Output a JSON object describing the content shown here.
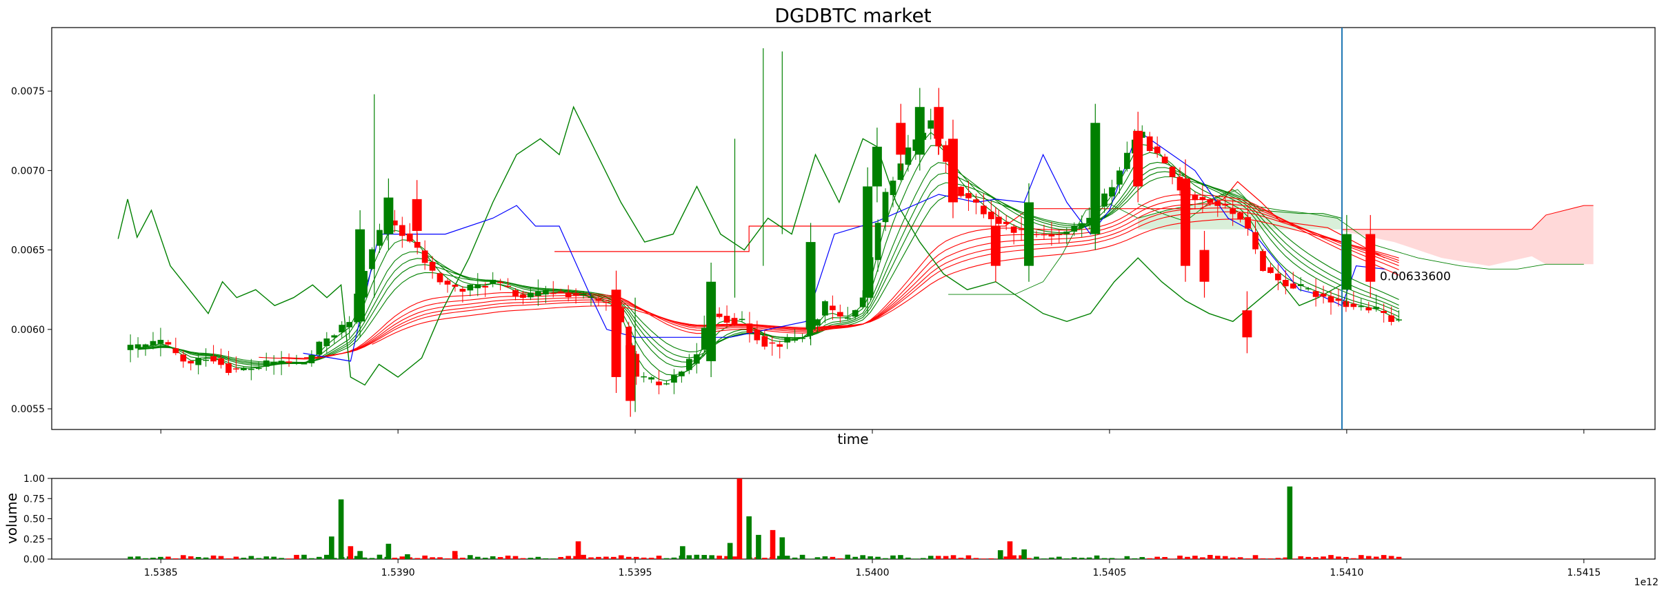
{
  "chart_data": {
    "type": "candlestick",
    "title": "DGDBTC market",
    "xlabel": "time",
    "x_offset_label": "1e12",
    "x_scale": 1000000000000,
    "xlim": [
      1538270000000,
      1541650000000
    ],
    "x_ticks": [
      1538500000000,
      1539000000000,
      1539500000000,
      1540000000000,
      1540500000000,
      1541000000000,
      1541500000000
    ],
    "x_tick_labels": [
      "1.5385",
      "1.5390",
      "1.5395",
      "1.5400",
      "1.5405",
      "1.5410",
      "1.5415"
    ],
    "ylim": [
      0.00537,
      0.0079
    ],
    "y_ticks": [
      0.0055,
      0.006,
      0.0065,
      0.007,
      0.0075
    ],
    "y_tick_labels": [
      "0.0055",
      "0.0060",
      "0.0065",
      "0.0070",
      "0.0075"
    ],
    "last_price_label": "0.00633600",
    "last_price": 0.006336,
    "current_time": 1540990000000,
    "colors": {
      "up": "#008000",
      "down": "#ff0000",
      "blue_line": "#0000ff",
      "current_time_line": "#1f77b4",
      "cloud_up": "#d9efd9",
      "cloud_down": "#ffd9d9"
    },
    "candle_anchors": [
      [
        1538420000000,
        0.00587
      ],
      [
        1538500000000,
        0.00592
      ],
      [
        1538560000000,
        0.00577
      ],
      [
        1538600000000,
        0.00584
      ],
      [
        1538650000000,
        0.00574
      ],
      [
        1538700000000,
        0.00576
      ],
      [
        1538750000000,
        0.0058
      ],
      [
        1538800000000,
        0.00578
      ],
      [
        1538850000000,
        0.00595
      ],
      [
        1538900000000,
        0.00605
      ],
      [
        1538940000000,
        0.0065
      ],
      [
        1538980000000,
        0.0067
      ],
      [
        1539040000000,
        0.0065
      ],
      [
        1539080000000,
        0.00632
      ],
      [
        1539130000000,
        0.00624
      ],
      [
        1539200000000,
        0.0063
      ],
      [
        1539260000000,
        0.0062
      ],
      [
        1539330000000,
        0.00624
      ],
      [
        1539400000000,
        0.0062
      ],
      [
        1539460000000,
        0.00613
      ],
      [
        1539500000000,
        0.0057
      ],
      [
        1539560000000,
        0.00565
      ],
      [
        1539620000000,
        0.0058
      ],
      [
        1539660000000,
        0.0061
      ],
      [
        1539720000000,
        0.00605
      ],
      [
        1539780000000,
        0.0059
      ],
      [
        1539850000000,
        0.00595
      ],
      [
        1539900000000,
        0.00615
      ],
      [
        1539940000000,
        0.00605
      ],
      [
        1539980000000,
        0.0062
      ],
      [
        1540020000000,
        0.0068
      ],
      [
        1540070000000,
        0.0071
      ],
      [
        1540120000000,
        0.00732
      ],
      [
        1540170000000,
        0.0069
      ],
      [
        1540230000000,
        0.00675
      ],
      [
        1540280000000,
        0.00665
      ],
      [
        1540330000000,
        0.0066
      ],
      [
        1540400000000,
        0.0066
      ],
      [
        1540450000000,
        0.00668
      ],
      [
        1540500000000,
        0.00688
      ],
      [
        1540560000000,
        0.00725
      ],
      [
        1540610000000,
        0.00705
      ],
      [
        1540660000000,
        0.00685
      ],
      [
        1540720000000,
        0.0068
      ],
      [
        1540780000000,
        0.0067
      ],
      [
        1540820000000,
        0.0064
      ],
      [
        1540860000000,
        0.0063
      ],
      [
        1540910000000,
        0.00625
      ],
      [
        1540960000000,
        0.0062
      ],
      [
        1541010000000,
        0.00615
      ],
      [
        1541060000000,
        0.00612
      ],
      [
        1541100000000,
        0.00605
      ],
      [
        1541140000000,
        0.006
      ],
      [
        1541190000000,
        0.00612
      ],
      [
        1541240000000,
        0.0062
      ],
      [
        1541290000000,
        0.0064
      ],
      [
        1541330000000,
        0.0063
      ],
      [
        1541380000000,
        0.00632
      ],
      [
        1541420000000,
        0.00634
      ]
    ],
    "big_candles": [
      [
        1538920000000,
        0.00605,
        0.00663
      ],
      [
        1538980000000,
        0.0066,
        0.00683
      ],
      [
        1539040000000,
        0.00682,
        0.00662
      ],
      [
        1539460000000,
        0.00625,
        0.0057
      ],
      [
        1539490000000,
        0.0059,
        0.00555
      ],
      [
        1539660000000,
        0.0058,
        0.0063
      ],
      [
        1539870000000,
        0.006,
        0.00655
      ],
      [
        1539990000000,
        0.0062,
        0.0069
      ],
      [
        1540010000000,
        0.0069,
        0.00715
      ],
      [
        1540060000000,
        0.0073,
        0.0071
      ],
      [
        1540100000000,
        0.0071,
        0.0074
      ],
      [
        1540140000000,
        0.0074,
        0.0072
      ],
      [
        1540170000000,
        0.0072,
        0.0068
      ],
      [
        1540260000000,
        0.00665,
        0.0064
      ],
      [
        1540330000000,
        0.0064,
        0.0068
      ],
      [
        1540470000000,
        0.0066,
        0.0073
      ],
      [
        1540560000000,
        0.00725,
        0.0069
      ],
      [
        1540660000000,
        0.00695,
        0.0064
      ],
      [
        1540700000000,
        0.0065,
        0.0063
      ],
      [
        1541000000000,
        0.00625,
        0.0066
      ],
      [
        1541050000000,
        0.0066,
        0.0063
      ],
      [
        1540790000000,
        0.00612,
        0.00595
      ]
    ],
    "oscillator_line": [
      [
        1538410000000,
        0.00657
      ],
      [
        1538430000000,
        0.00682
      ],
      [
        1538450000000,
        0.00658
      ],
      [
        1538480000000,
        0.00675
      ],
      [
        1538520000000,
        0.0064
      ],
      [
        1538560000000,
        0.00625
      ],
      [
        1538600000000,
        0.0061
      ],
      [
        1538630000000,
        0.0063
      ],
      [
        1538660000000,
        0.0062
      ],
      [
        1538700000000,
        0.00625
      ],
      [
        1538740000000,
        0.00615
      ],
      [
        1538780000000,
        0.0062
      ],
      [
        1538820000000,
        0.00628
      ],
      [
        1538850000000,
        0.0062
      ],
      [
        1538880000000,
        0.00628
      ],
      [
        1538900000000,
        0.0057
      ],
      [
        1538930000000,
        0.00565
      ],
      [
        1538960000000,
        0.00578
      ],
      [
        1539000000000,
        0.0057
      ],
      [
        1539050000000,
        0.00582
      ],
      [
        1539090000000,
        0.0061
      ],
      [
        1539150000000,
        0.00645
      ],
      [
        1539200000000,
        0.0068
      ],
      [
        1539250000000,
        0.0071
      ],
      [
        1539300000000,
        0.0072
      ],
      [
        1539340000000,
        0.0071
      ],
      [
        1539370000000,
        0.0074
      ],
      [
        1539420000000,
        0.0071
      ],
      [
        1539470000000,
        0.0068
      ],
      [
        1539520000000,
        0.00655
      ],
      [
        1539580000000,
        0.0066
      ],
      [
        1539630000000,
        0.0069
      ],
      [
        1539680000000,
        0.0066
      ],
      [
        1539730000000,
        0.0065
      ],
      [
        1539780000000,
        0.0067
      ],
      [
        1539830000000,
        0.0066
      ],
      [
        1539880000000,
        0.0071
      ],
      [
        1539930000000,
        0.0068
      ],
      [
        1539980000000,
        0.0072
      ],
      [
        1540010000000,
        0.00715
      ],
      [
        1540050000000,
        0.0068
      ],
      [
        1540100000000,
        0.00655
      ],
      [
        1540150000000,
        0.00635
      ],
      [
        1540200000000,
        0.00625
      ],
      [
        1540260000000,
        0.0063
      ],
      [
        1540310000000,
        0.0062
      ],
      [
        1540360000000,
        0.0061
      ],
      [
        1540410000000,
        0.00605
      ],
      [
        1540460000000,
        0.0061
      ],
      [
        1540510000000,
        0.0063
      ],
      [
        1540560000000,
        0.00645
      ],
      [
        1540610000000,
        0.0063
      ],
      [
        1540660000000,
        0.00618
      ],
      [
        1540710000000,
        0.0061
      ],
      [
        1540760000000,
        0.00605
      ],
      [
        1540820000000,
        0.0062
      ],
      [
        1540860000000,
        0.0063
      ],
      [
        1540900000000,
        0.00615
      ],
      [
        1540940000000,
        0.0062
      ],
      [
        1541000000000,
        0.0063
      ]
    ],
    "blue_line": [
      [
        1538800000000,
        0.00585
      ],
      [
        1538900000000,
        0.0058
      ],
      [
        1538960000000,
        0.0066
      ],
      [
        1539100000000,
        0.0066
      ],
      [
        1539200000000,
        0.0067
      ],
      [
        1539250000000,
        0.00678
      ],
      [
        1539290000000,
        0.00665
      ],
      [
        1539340000000,
        0.00665
      ],
      [
        1539400000000,
        0.00625
      ],
      [
        1539440000000,
        0.006
      ],
      [
        1539500000000,
        0.00595
      ],
      [
        1539700000000,
        0.00595
      ],
      [
        1539860000000,
        0.00605
      ],
      [
        1539920000000,
        0.0066
      ],
      [
        1540010000000,
        0.00668
      ],
      [
        1540140000000,
        0.00685
      ],
      [
        1540220000000,
        0.0068
      ],
      [
        1540260000000,
        0.00682
      ],
      [
        1540320000000,
        0.0068
      ],
      [
        1540360000000,
        0.0071
      ],
      [
        1540410000000,
        0.0068
      ],
      [
        1540460000000,
        0.0066
      ],
      [
        1540500000000,
        0.00675
      ],
      [
        1540560000000,
        0.00725
      ],
      [
        1540680000000,
        0.007
      ],
      [
        1540750000000,
        0.0067
      ],
      [
        1540800000000,
        0.00662
      ],
      [
        1540860000000,
        0.0064
      ],
      [
        1540900000000,
        0.00625
      ],
      [
        1540940000000,
        0.00622
      ],
      [
        1540990000000,
        0.00615
      ],
      [
        1541020000000,
        0.0064
      ],
      [
        1541080000000,
        0.00638
      ]
    ],
    "red_top_line": [
      [
        1539330000000,
        0.00649
      ],
      [
        1539740000000,
        0.00649
      ],
      [
        1539740000000,
        0.00665
      ],
      [
        1540040000000,
        0.00665
      ],
      [
        1540280000000,
        0.00665
      ],
      [
        1540330000000,
        0.00676
      ],
      [
        1540690000000,
        0.00676
      ],
      [
        1540740000000,
        0.00682
      ],
      [
        1540770000000,
        0.00693
      ],
      [
        1540820000000,
        0.0068
      ],
      [
        1540860000000,
        0.00668
      ],
      [
        1540960000000,
        0.00664
      ],
      [
        1541080000000,
        0.00645
      ]
    ],
    "cloud_span_a": [
      [
        1538950000000,
        0.00629
      ],
      [
        1539100000000,
        0.00622
      ],
      [
        1539300000000,
        0.00615
      ],
      [
        1539500000000,
        0.00612
      ],
      [
        1539700000000,
        0.00605
      ],
      [
        1539940000000,
        0.00655
      ],
      [
        1540000000000,
        0.00665
      ],
      [
        1540100000000,
        0.00663
      ],
      [
        1540160000000,
        0.00662
      ],
      [
        1540300000000,
        0.00678
      ],
      [
        1540500000000,
        0.00665
      ],
      [
        1540600000000,
        0.00678
      ],
      [
        1540700000000,
        0.0066
      ],
      [
        1540800000000,
        0.00665
      ],
      [
        1540900000000,
        0.00654
      ],
      [
        1541000000000,
        0.00642
      ],
      [
        1541140000000,
        0.00628
      ],
      [
        1541200000000,
        0.00622
      ],
      [
        1541300000000,
        0.00625
      ]
    ],
    "cloud_span_b": [
      [
        1538950000000,
        0.0062
      ],
      [
        1539100000000,
        0.0062
      ],
      [
        1539300000000,
        0.0062
      ],
      [
        1539500000000,
        0.00655
      ],
      [
        1539700000000,
        0.0062
      ],
      [
        1539940000000,
        0.0063
      ],
      [
        1540000000000,
        0.0064
      ],
      [
        1540100000000,
        0.0066
      ],
      [
        1540160000000,
        0.00668
      ],
      [
        1540300000000,
        0.0066
      ],
      [
        1540500000000,
        0.00663
      ],
      [
        1540600000000,
        0.00665
      ],
      [
        1540700000000,
        0.0067
      ],
      [
        1540800000000,
        0.00662
      ],
      [
        1540900000000,
        0.0066
      ],
      [
        1541000000000,
        0.00655
      ],
      [
        1541140000000,
        0.00645
      ],
      [
        1541200000000,
        0.00645
      ],
      [
        1541300000000,
        0.0064
      ]
    ],
    "green_cloud": {
      "x": [
        1540560000000,
        1540620000000,
        1540700000000,
        1540760000000,
        1540820000000,
        1540900000000,
        1540950000000,
        1540990000000
      ],
      "upper": [
        0.0067,
        0.00675,
        0.0068,
        0.00688,
        0.00675,
        0.00673,
        0.00673,
        0.0067
      ],
      "lower": [
        0.00663,
        0.00663,
        0.00663,
        0.00663,
        0.00663,
        0.00663,
        0.00663,
        0.00663
      ]
    },
    "red_cloud": {
      "x": [
        1540990000000,
        1541100000000,
        1541200000000,
        1541300000000,
        1541390000000,
        1541420000000,
        1541460000000,
        1541500000000,
        1541520000000
      ],
      "upper": [
        0.00663,
        0.00663,
        0.00663,
        0.00663,
        0.00663,
        0.00672,
        0.00675,
        0.00678,
        0.00678
      ],
      "lower": [
        0.00662,
        0.00655,
        0.00645,
        0.0064,
        0.00646,
        0.00641,
        0.00641,
        0.00641,
        0.00641
      ]
    },
    "green_cloud_left": [
      [
        1540160000000,
        0.00622
      ],
      [
        1540300000000,
        0.00622
      ],
      [
        1540360000000,
        0.0063
      ],
      [
        1540400000000,
        0.00647
      ],
      [
        1540450000000,
        0.00675
      ],
      [
        1540500000000,
        0.00679
      ],
      [
        1540560000000,
        0.0067
      ]
    ],
    "green_cloud_top": [
      [
        1540560000000,
        0.00679
      ],
      [
        1540620000000,
        0.00672
      ],
      [
        1540660000000,
        0.00668
      ],
      [
        1540720000000,
        0.00682
      ],
      [
        1540770000000,
        0.00688
      ],
      [
        1540800000000,
        0.00678
      ],
      [
        1540860000000,
        0.00675
      ],
      [
        1540920000000,
        0.00673
      ],
      [
        1540980000000,
        0.0067
      ],
      [
        1541060000000,
        0.00653
      ],
      [
        1541150000000,
        0.00645
      ],
      [
        1541240000000,
        0.0064
      ],
      [
        1541300000000,
        0.00638
      ],
      [
        1541360000000,
        0.00638
      ],
      [
        1541420000000,
        0.00641
      ],
      [
        1541500000000,
        0.00641
      ]
    ],
    "volume": {
      "ylabel": "volume",
      "ylim": [
        0,
        1
      ],
      "y_ticks": [
        0,
        0.25,
        0.5,
        0.75,
        1
      ],
      "y_tick_labels": [
        "0.00",
        "0.25",
        "0.50",
        "0.75",
        "1.00"
      ],
      "spikes": [
        [
          1538860000000,
          0.28
        ],
        [
          1538880000000,
          0.74
        ],
        [
          1538900000000,
          0.16
        ],
        [
          1538920000000,
          0.1
        ],
        [
          1538980000000,
          0.19
        ],
        [
          1539380000000,
          0.22
        ],
        [
          1539600000000,
          0.16
        ],
        [
          1539700000000,
          0.2
        ],
        [
          1539720000000,
          1.0
        ],
        [
          1539740000000,
          0.53
        ],
        [
          1539760000000,
          0.3
        ],
        [
          1539790000000,
          0.36
        ],
        [
          1539810000000,
          0.27
        ],
        [
          1540270000000,
          0.11
        ],
        [
          1540290000000,
          0.22
        ],
        [
          1540880000000,
          0.9
        ],
        [
          1540320000000,
          0.12
        ],
        [
          1539120000000,
          0.1
        ],
        [
          1539020000000,
          0.06
        ]
      ]
    }
  }
}
